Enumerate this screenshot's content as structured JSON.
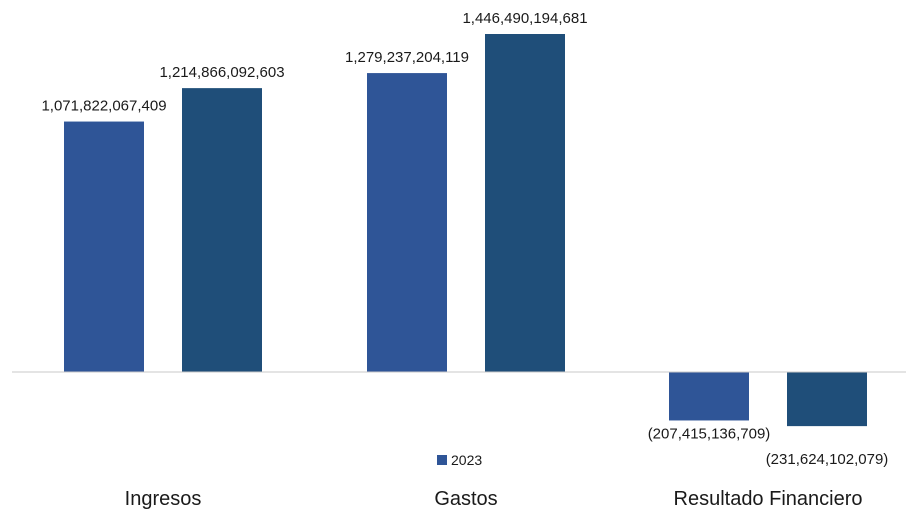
{
  "chart_data": {
    "type": "bar",
    "categories": [
      "Ingresos",
      "Gastos",
      "Resultado Financiero"
    ],
    "series": [
      {
        "name": "2023",
        "values": [
          1071822067409,
          1279237204119,
          -207415136709
        ],
        "labels": [
          "1,071,822,067,409",
          "1,279,237,204,119",
          "(207,415,136,709)"
        ]
      },
      {
        "values": [
          1214866092603,
          1446490194681,
          -231624102079
        ],
        "labels": [
          "1,214,866,092,603",
          "1,446,490,194,681",
          "(231,624,102,079)"
        ]
      }
    ],
    "grid": false,
    "legend_position": "bottom-center"
  },
  "colors": {
    "series_0": "#2f5597",
    "series_1": "#1f4e79",
    "axis": "#c8c8c8",
    "text": "#1a1a1a"
  }
}
